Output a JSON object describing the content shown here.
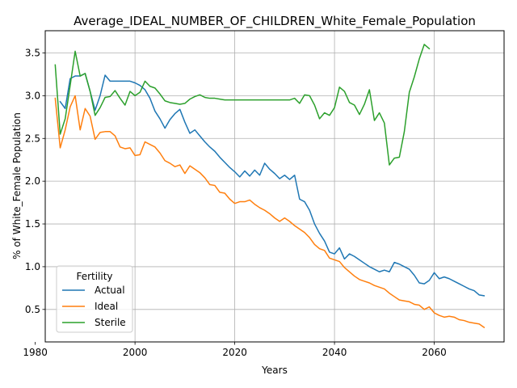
{
  "chart_data": {
    "type": "line",
    "title": "Average_IDEAL_NUMBER_OF_CHILDREN_White_Female_Population",
    "xlabel": "Years",
    "ylabel": "% of White_Female Population",
    "xlim": [
      1982,
      2074
    ],
    "ylim": [
      0.12,
      3.76
    ],
    "xticks": [
      1980,
      2000,
      2020,
      2040,
      2060
    ],
    "yticks": [
      0.5,
      1.0,
      1.5,
      2.0,
      2.5,
      3.0,
      3.5
    ],
    "grid": true,
    "legend_title": "Fertility",
    "legend_position": "lower-left",
    "x": [
      1984,
      1985,
      1986,
      1987,
      1988,
      1989,
      1990,
      1991,
      1992,
      1993,
      1994,
      1995,
      1996,
      1997,
      1998,
      1999,
      2000,
      2001,
      2002,
      2003,
      2004,
      2005,
      2006,
      2007,
      2008,
      2009,
      2010,
      2011,
      2012,
      2013,
      2014,
      2015,
      2016,
      2017,
      2018,
      2019,
      2020,
      2021,
      2022,
      2023,
      2024,
      2025,
      2026,
      2027,
      2028,
      2029,
      2030,
      2031,
      2032,
      2033,
      2034,
      2035,
      2036,
      2037,
      2038,
      2039,
      2040,
      2041,
      2042,
      2043,
      2044,
      2045,
      2046,
      2047,
      2048,
      2049,
      2050,
      2051,
      2052,
      2053,
      2054,
      2055,
      2056,
      2057,
      2058,
      2059,
      2060,
      2061,
      2062,
      2063,
      2064,
      2065,
      2066,
      2067,
      2068,
      2069,
      2070
    ],
    "series": [
      {
        "name": "Actual",
        "color": "#1f77b4",
        "values": [
          null,
          2.93,
          2.85,
          3.2,
          3.23,
          3.23,
          3.26,
          3.05,
          2.83,
          3.0,
          3.24,
          3.17,
          3.17,
          3.17,
          3.17,
          3.17,
          3.15,
          3.12,
          3.07,
          2.97,
          2.82,
          2.73,
          2.62,
          2.72,
          2.79,
          2.84,
          2.69,
          2.56,
          2.6,
          2.53,
          2.46,
          2.4,
          2.35,
          2.28,
          2.22,
          2.16,
          2.11,
          2.05,
          2.12,
          2.06,
          2.13,
          2.07,
          2.21,
          2.14,
          2.09,
          2.03,
          2.07,
          2.02,
          2.07,
          1.79,
          1.76,
          1.66,
          1.5,
          1.39,
          1.3,
          1.17,
          1.15,
          1.22,
          1.09,
          1.15,
          1.12,
          1.08,
          1.04,
          1.0,
          0.97,
          0.94,
          0.96,
          0.94,
          1.05,
          1.03,
          1.0,
          0.97,
          0.9,
          0.81,
          0.8,
          0.84,
          0.93,
          0.86,
          0.88,
          0.86,
          0.83,
          0.8,
          0.77,
          0.74,
          0.72,
          0.67,
          0.66
        ]
      },
      {
        "name": "Ideal",
        "color": "#ff7f0e",
        "values": [
          2.97,
          2.39,
          2.6,
          2.87,
          3.0,
          2.6,
          2.85,
          2.76,
          2.49,
          2.57,
          2.58,
          2.58,
          2.53,
          2.4,
          2.38,
          2.39,
          2.3,
          2.31,
          2.46,
          2.43,
          2.4,
          2.33,
          2.24,
          2.21,
          2.17,
          2.19,
          2.09,
          2.18,
          2.14,
          2.1,
          2.04,
          1.96,
          1.95,
          1.87,
          1.86,
          1.79,
          1.74,
          1.76,
          1.76,
          1.78,
          1.73,
          1.69,
          1.66,
          1.62,
          1.57,
          1.53,
          1.57,
          1.53,
          1.48,
          1.44,
          1.4,
          1.34,
          1.26,
          1.21,
          1.19,
          1.1,
          1.08,
          1.06,
          0.99,
          0.94,
          0.89,
          0.85,
          0.83,
          0.81,
          0.78,
          0.76,
          0.74,
          0.69,
          0.65,
          0.61,
          0.6,
          0.59,
          0.56,
          0.55,
          0.5,
          0.53,
          0.46,
          0.43,
          0.41,
          0.42,
          0.41,
          0.38,
          0.37,
          0.35,
          0.34,
          0.33,
          0.29
        ]
      },
      {
        "name": "Sterile",
        "color": "#2ca02c",
        "values": [
          3.36,
          2.55,
          2.73,
          3.12,
          3.52,
          3.23,
          3.26,
          3.05,
          2.77,
          2.86,
          2.98,
          2.99,
          3.06,
          2.97,
          2.89,
          3.05,
          3.0,
          3.04,
          3.17,
          3.11,
          3.09,
          3.02,
          2.94,
          2.92,
          2.91,
          2.9,
          2.91,
          2.96,
          2.99,
          3.01,
          2.98,
          2.97,
          2.97,
          2.96,
          2.95,
          2.95,
          2.95,
          2.95,
          2.95,
          2.95,
          2.95,
          2.95,
          2.95,
          2.95,
          2.95,
          2.95,
          2.95,
          2.95,
          2.97,
          2.91,
          3.01,
          3.0,
          2.89,
          2.73,
          2.8,
          2.77,
          2.86,
          3.1,
          3.05,
          2.92,
          2.89,
          2.78,
          2.9,
          3.07,
          2.71,
          2.8,
          2.68,
          2.19,
          2.27,
          2.28,
          2.58,
          3.04,
          3.22,
          3.43,
          3.6,
          3.55,
          null,
          null,
          null,
          null,
          null,
          null,
          null,
          null,
          null,
          null,
          null
        ]
      }
    ]
  }
}
